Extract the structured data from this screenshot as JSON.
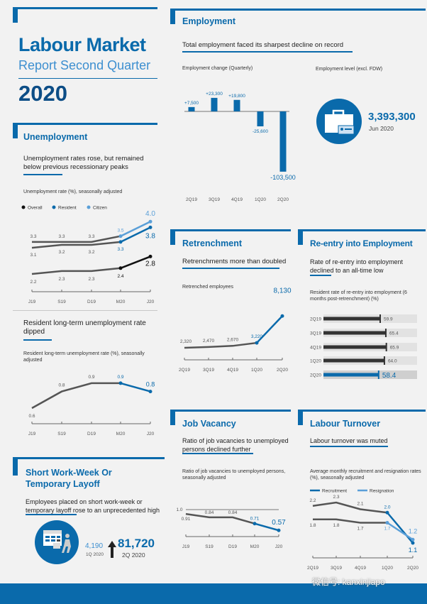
{
  "title": {
    "line1": "Labour Market",
    "line2": "Report Second Quarter",
    "year": "2020"
  },
  "colors": {
    "blue": "#0a6aab",
    "light_blue": "#5a9fd8",
    "gray": "#555555",
    "black": "#111111"
  },
  "unemployment": {
    "heading": "Unemployment",
    "subtitle": "Unemployment rates rose, but remained below previous recessionary peaks",
    "chart_title": "Unemployment rate (%), seasonally adjusted",
    "legend": [
      "Overall",
      "Resident",
      "Citizen"
    ]
  },
  "longterm": {
    "heading": "Resident long-term unemployment rate dipped",
    "chart_title": "Resident long-term unemployment rate (%), seasonally adjusted"
  },
  "shortweek": {
    "heading": "Short Work-Week Or Temporary Layoff",
    "subtitle": "Employees placed on short work-week or temporary layoff rose to an unprecedented high",
    "prev_value": "4,190",
    "prev_period": "1Q 2020",
    "value": "81,720",
    "period": "2Q 2020"
  },
  "employment": {
    "heading": "Employment",
    "subtitle": "Total employment faced its sharpest decline on record",
    "chart_title": "Employment change (Quarterly)",
    "level_title": "Employment level (excl. FDW)",
    "level_value": "3,393,300",
    "level_period": "Jun 2020"
  },
  "retrenchment": {
    "heading": "Retrenchment",
    "subtitle": "Retrenchments more than doubled",
    "chart_title": "Retrenched employees"
  },
  "reentry": {
    "heading": "Re-entry into Employment",
    "subtitle": "Rate of re-entry into employment declined to an all-time low",
    "chart_title": "Resident rate of re-entry into employment (6 months post-retrenchment) (%)"
  },
  "vacancy": {
    "heading": "Job Vacancy",
    "subtitle": "Ratio of job vacancies to unemployed persons declined further",
    "chart_title": "Ratio of job vacancies to unemployed persons, seasonally adjusted"
  },
  "turnover": {
    "heading": "Labour Turnover",
    "subtitle": "Labour turnover was muted",
    "chart_title": "Average monthly recruitment and resignation rates (%), seasonally adjusted",
    "legend": [
      "Recruitment",
      "Resignation"
    ]
  },
  "footer": {
    "watermark": "微信号: kanxinjiapo"
  },
  "chart_data": [
    {
      "id": "unemployment",
      "type": "line",
      "title": "Unemployment rate (%), seasonally adjusted",
      "categories": [
        "J19",
        "S19",
        "D19",
        "M20",
        "J20"
      ],
      "series": [
        {
          "name": "Overall",
          "values": [
            2.2,
            2.3,
            2.3,
            2.4,
            2.8
          ],
          "labels": [
            "2.2",
            "2.3",
            "2.3",
            "2.4",
            "2.8"
          ]
        },
        {
          "name": "Resident",
          "values": [
            3.1,
            3.2,
            3.2,
            3.3,
            3.8
          ],
          "labels": [
            "3.1",
            "3.2",
            "3.2",
            "3.3",
            "3.8"
          ]
        },
        {
          "name": "Citizen",
          "values": [
            3.3,
            3.3,
            3.3,
            3.5,
            4.0
          ],
          "labels": [
            "3.3",
            "3.3",
            "3.3",
            "3.5",
            "4.0"
          ]
        }
      ]
    },
    {
      "id": "longterm",
      "type": "line",
      "title": "Resident long-term unemployment rate (%), seasonally adjusted",
      "categories": [
        "J19",
        "S19",
        "D19",
        "M20",
        "J20"
      ],
      "series": [
        {
          "name": "Resident long-term",
          "values": [
            0.6,
            0.8,
            0.9,
            0.9,
            0.8
          ],
          "labels": [
            "0.6",
            "0.8",
            "0.9",
            "0.9",
            "0.8"
          ]
        }
      ]
    },
    {
      "id": "employment",
      "type": "bar",
      "title": "Employment change (Quarterly)",
      "categories": [
        "2Q19",
        "3Q19",
        "4Q19",
        "1Q20",
        "2Q20"
      ],
      "values": [
        7500,
        23300,
        19800,
        -25600,
        -103500
      ],
      "labels": [
        "+7,500",
        "+23,300",
        "+19,800",
        "-25,600",
        "-103,500"
      ]
    },
    {
      "id": "retrenchment",
      "type": "line",
      "title": "Retrenched employees",
      "categories": [
        "2Q19",
        "3Q19",
        "4Q19",
        "1Q20",
        "2Q20"
      ],
      "series": [
        {
          "name": "Retrenched",
          "values": [
            2320,
            2470,
            2670,
            3220,
            8130
          ],
          "labels": [
            "2,320",
            "2,470",
            "2,670",
            "3,220",
            "8,130"
          ]
        }
      ]
    },
    {
      "id": "reentry",
      "type": "bar",
      "title": "Resident rate of re-entry into employment (6 months post-retrenchment) (%)",
      "categories": [
        "2Q19",
        "3Q19",
        "4Q19",
        "1Q20",
        "2Q20"
      ],
      "values": [
        59.9,
        65.4,
        65.9,
        64.0,
        58.4
      ],
      "labels": [
        "59.9",
        "65.4",
        "65.9",
        "64.0",
        "58.4"
      ]
    },
    {
      "id": "vacancy",
      "type": "line",
      "title": "Ratio of job vacancies to unemployed persons, seasonally adjusted",
      "categories": [
        "J19",
        "S19",
        "D19",
        "M20",
        "J20"
      ],
      "reference": {
        "value": 1.0,
        "label": "1.0"
      },
      "series": [
        {
          "name": "Ratio",
          "values": [
            0.91,
            0.84,
            0.84,
            0.71,
            0.57
          ],
          "labels": [
            "0.91",
            "0.84",
            "0.84",
            "0.71",
            "0.57"
          ]
        }
      ]
    },
    {
      "id": "turnover",
      "type": "line",
      "title": "Average monthly recruitment and resignation rates (%), seasonally adjusted",
      "categories": [
        "2Q19",
        "3Q19",
        "4Q19",
        "1Q20",
        "2Q20"
      ],
      "series": [
        {
          "name": "Recruitment",
          "values": [
            2.2,
            2.3,
            2.1,
            2.0,
            1.1
          ],
          "labels": [
            "2.2",
            "2.3",
            "2.1",
            "2.0",
            "1.1"
          ]
        },
        {
          "name": "Resignation",
          "values": [
            1.8,
            1.8,
            1.7,
            1.7,
            1.2
          ],
          "labels": [
            "1.8",
            "1.8",
            "1.7",
            "1.7",
            "1.2"
          ]
        }
      ]
    }
  ]
}
